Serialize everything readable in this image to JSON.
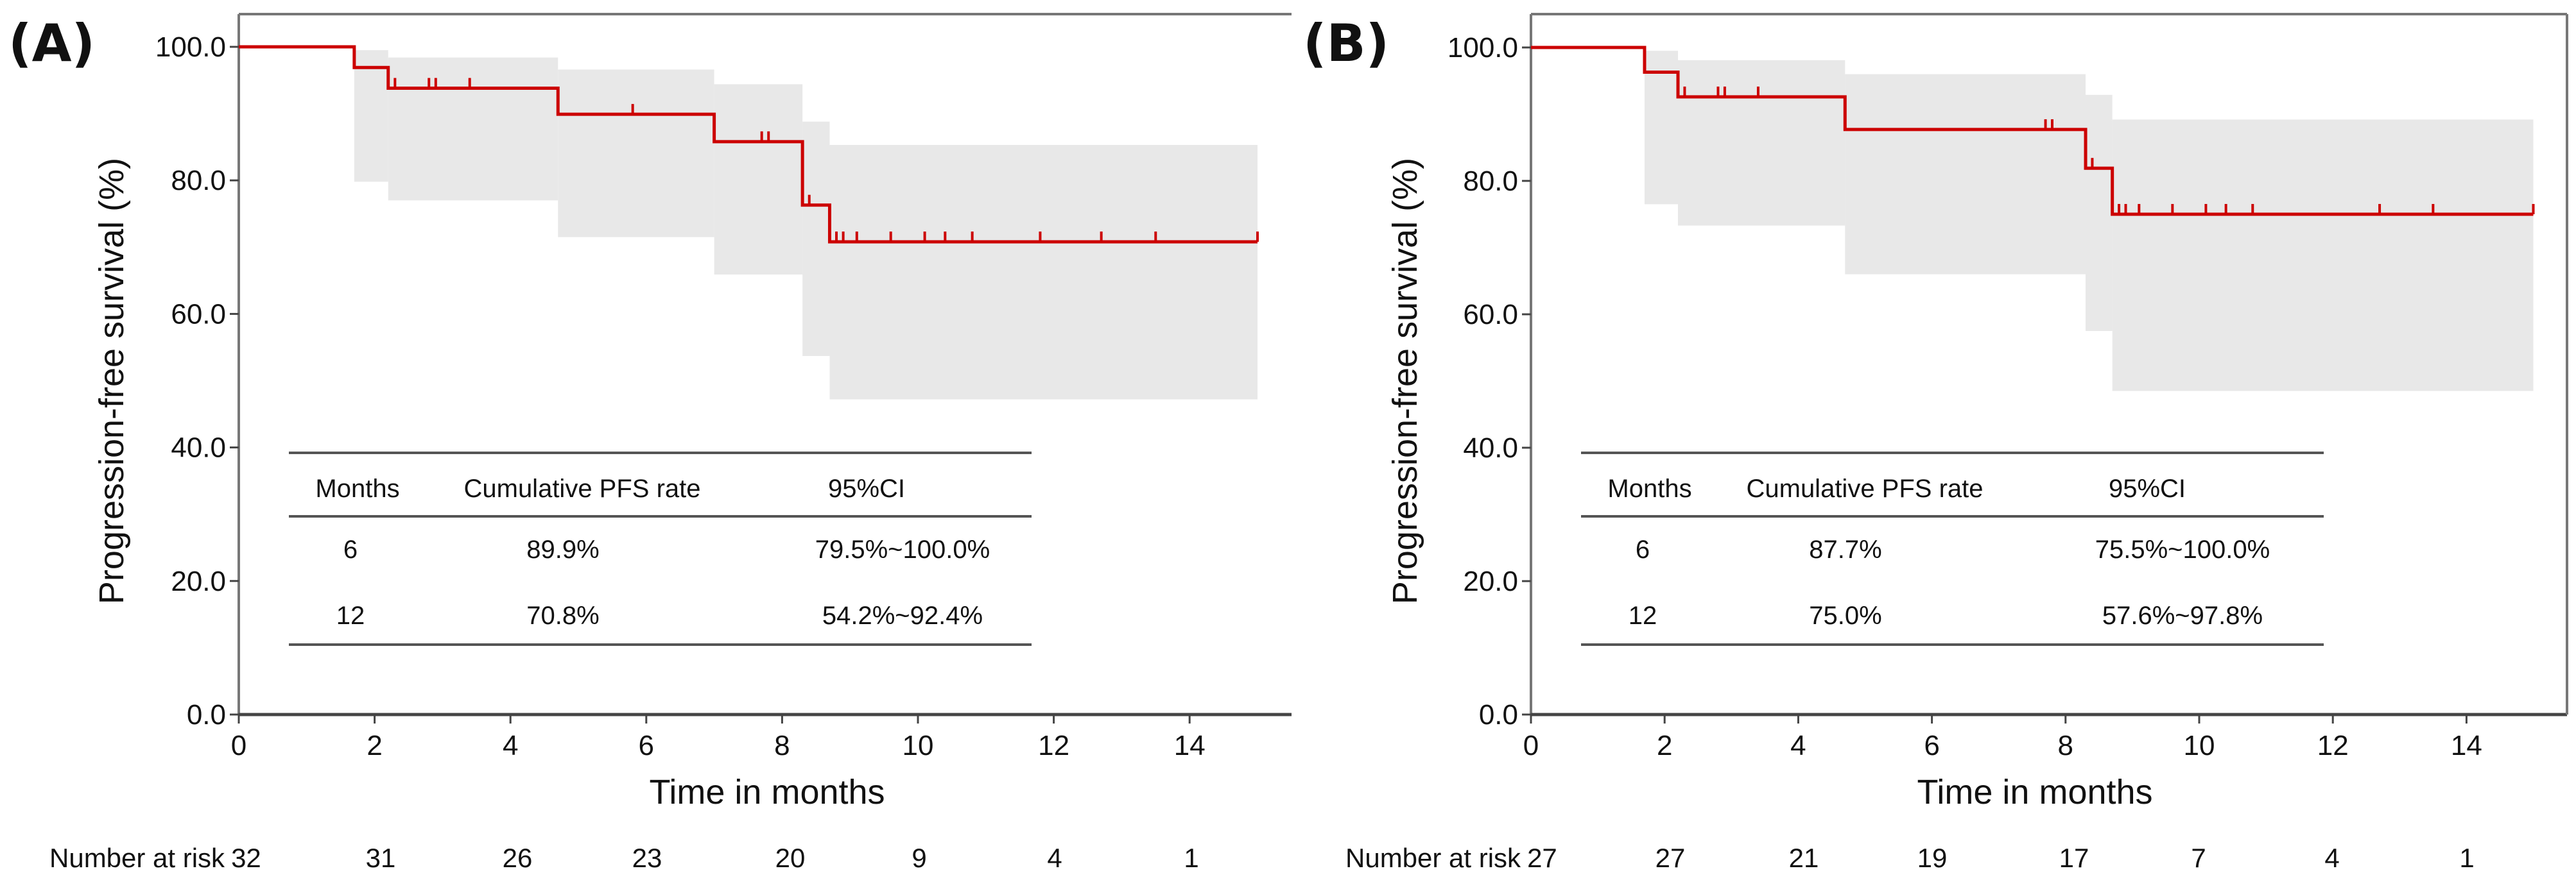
{
  "chart_data": [
    {
      "type": "line",
      "subtype": "kaplan-meier",
      "panel_label": "(A)",
      "xlabel": "Time in months",
      "ylabel": "Progression-free survival (%)",
      "xlim": [
        0,
        15.5
      ],
      "ylim": [
        0,
        100
      ],
      "xticks": [
        "0",
        "2",
        "4",
        "6",
        "8",
        "10",
        "12",
        "14"
      ],
      "yticks": [
        "0.0",
        "20.0",
        "40.0",
        "60.0",
        "80.0",
        "100.0"
      ],
      "grid": false,
      "series_color": "#cc0000",
      "ci_color": "#e8e8e8",
      "steps": [
        [
          0,
          100
        ],
        [
          1.7,
          96.9
        ],
        [
          2.2,
          93.8
        ],
        [
          4.7,
          89.9
        ],
        [
          7.0,
          85.8
        ],
        [
          8.3,
          76.3
        ],
        [
          8.7,
          70.8
        ]
      ],
      "end_time": 15.0,
      "censored": [
        2.3,
        2.8,
        2.9,
        3.4,
        5.8,
        7.7,
        7.8,
        8.4,
        8.8,
        8.9,
        9.1,
        9.6,
        10.1,
        10.4,
        10.8,
        11.8,
        12.7,
        13.5,
        15.0
      ],
      "ci": [
        [
          1.7,
          2.2,
          79.8,
          99.5
        ],
        [
          2.2,
          4.7,
          77.0,
          98.4
        ],
        [
          4.7,
          7.0,
          71.5,
          96.6
        ],
        [
          7.0,
          8.3,
          65.9,
          94.4
        ],
        [
          8.3,
          8.7,
          53.7,
          88.8
        ],
        [
          8.7,
          15.0,
          47.2,
          85.3
        ]
      ],
      "table": {
        "headers": [
          "Months",
          "Cumulative PFS rate",
          "95%CI"
        ],
        "rows": [
          [
            "6",
            "89.9%",
            "79.5%~100.0%"
          ],
          [
            "12",
            "70.8%",
            "54.2%~92.4%"
          ]
        ]
      },
      "risk_label": "Number at risk",
      "number_at_risk": [
        "32",
        "31",
        "26",
        "23",
        "20",
        "9",
        "4",
        "1"
      ]
    },
    {
      "type": "line",
      "subtype": "kaplan-meier",
      "panel_label": "(B)",
      "xlabel": "Time in months",
      "ylabel": "Progression-free survival (%)",
      "xlim": [
        0,
        15.5
      ],
      "ylim": [
        0,
        100
      ],
      "xticks": [
        "0",
        "2",
        "4",
        "6",
        "8",
        "10",
        "12",
        "14"
      ],
      "yticks": [
        "0.0",
        "20.0",
        "40.0",
        "60.0",
        "80.0",
        "100.0"
      ],
      "grid": false,
      "series_color": "#cc0000",
      "ci_color": "#e8e8e8",
      "steps": [
        [
          0,
          100
        ],
        [
          1.7,
          96.3
        ],
        [
          2.2,
          92.6
        ],
        [
          4.7,
          87.7
        ],
        [
          8.3,
          81.9
        ],
        [
          8.7,
          75.0
        ]
      ],
      "end_time": 15.0,
      "censored": [
        2.3,
        2.8,
        2.9,
        3.4,
        7.7,
        7.8,
        8.4,
        8.8,
        8.9,
        9.1,
        9.6,
        10.1,
        10.4,
        10.8,
        12.7,
        13.5,
        15.0
      ],
      "ci": [
        [
          1.7,
          2.2,
          76.5,
          99.5
        ],
        [
          2.2,
          4.7,
          73.3,
          98.1
        ],
        [
          4.7,
          8.3,
          66.0,
          96.0
        ],
        [
          8.3,
          8.7,
          57.5,
          92.9
        ],
        [
          8.7,
          15.0,
          48.5,
          89.2
        ]
      ],
      "table": {
        "headers": [
          "Months",
          "Cumulative PFS rate",
          "95%CI"
        ],
        "rows": [
          [
            "6",
            "87.7%",
            "75.5%~100.0%"
          ],
          [
            "12",
            "75.0%",
            "57.6%~97.8%"
          ]
        ]
      },
      "risk_label": "Number at risk",
      "number_at_risk": [
        "27",
        "27",
        "21",
        "19",
        "17",
        "7",
        "4",
        "1"
      ]
    }
  ]
}
